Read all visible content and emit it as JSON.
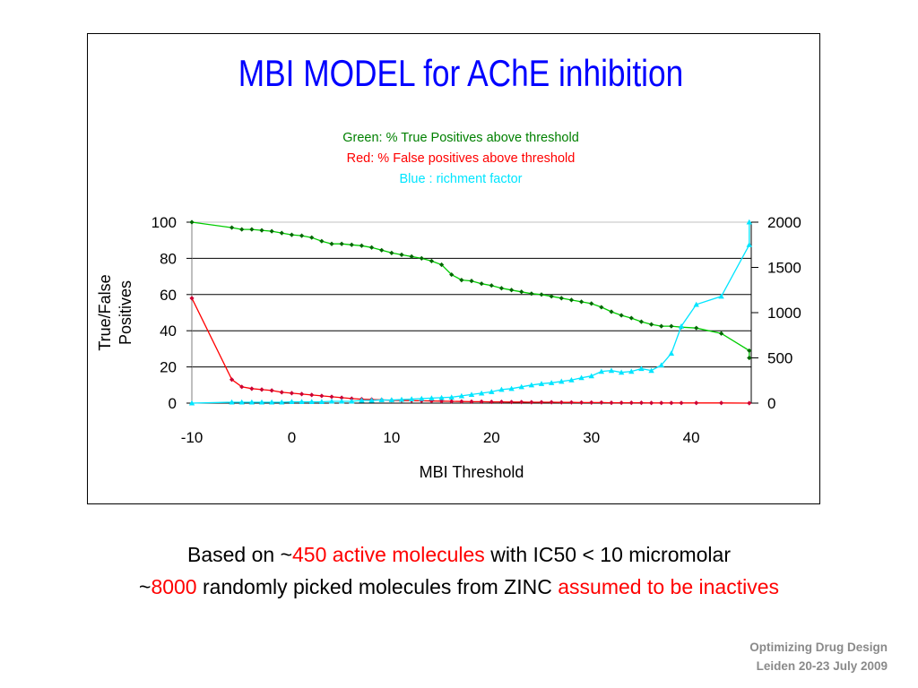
{
  "chart_data": {
    "type": "line",
    "title": "MBI MODEL for AChE inhibition",
    "subtitle_lines": [
      {
        "text": "Green: % True Positives above threshold",
        "color": "#008000"
      },
      {
        "text": "Red: % False positives above threshold",
        "color": "#ff0000"
      },
      {
        "text": "Blue : richment factor",
        "color": "#00e5ff"
      }
    ],
    "title_color": "#0000ff",
    "xlabel": "MBI Threshold",
    "ylabel_lines": [
      "True/False",
      "Positives"
    ],
    "xlim": [
      -10,
      46
    ],
    "ylim": [
      0,
      100
    ],
    "y2lim": [
      0,
      2000
    ],
    "x_ticks": [
      "-10",
      "0",
      "10",
      "20",
      "30",
      "40"
    ],
    "y_ticks": [
      "0",
      "20",
      "40",
      "60",
      "80",
      "100"
    ],
    "y2_ticks": [
      "0",
      "500",
      "1000",
      "1500",
      "2000"
    ],
    "grid": true,
    "series": [
      {
        "axis": "left",
        "color": "#00cc00",
        "marker": "diamond",
        "points": [
          [
            -10,
            100
          ],
          [
            -6,
            97
          ],
          [
            -5,
            96
          ],
          [
            -4,
            96
          ],
          [
            -3,
            95.5
          ],
          [
            -2,
            95
          ],
          [
            -1,
            94
          ],
          [
            0,
            93
          ],
          [
            1,
            92.5
          ],
          [
            2,
            91.5
          ],
          [
            3,
            89.5
          ],
          [
            4,
            88
          ],
          [
            5,
            88
          ],
          [
            6,
            87.5
          ],
          [
            7,
            87
          ],
          [
            8,
            86
          ],
          [
            9,
            84.5
          ],
          [
            10,
            83
          ],
          [
            11,
            82
          ],
          [
            12,
            81
          ],
          [
            13,
            80
          ],
          [
            14,
            78.5
          ],
          [
            15,
            76.5
          ],
          [
            16,
            71
          ],
          [
            17,
            68
          ],
          [
            18,
            67.5
          ],
          [
            19,
            66
          ],
          [
            20,
            65
          ],
          [
            21,
            63.5
          ],
          [
            22,
            62.5
          ],
          [
            23,
            61.5
          ],
          [
            24,
            60.5
          ],
          [
            25,
            60
          ],
          [
            26,
            59
          ],
          [
            27,
            58
          ],
          [
            28,
            57
          ],
          [
            29,
            56
          ],
          [
            30,
            55
          ],
          [
            31,
            53
          ],
          [
            32,
            50.5
          ],
          [
            33,
            48.5
          ],
          [
            34,
            47
          ],
          [
            35,
            45
          ],
          [
            36,
            43.5
          ],
          [
            37,
            42.5
          ],
          [
            38,
            42.5
          ],
          [
            39,
            42
          ],
          [
            40.5,
            41.5
          ],
          [
            43,
            38.5
          ],
          [
            45.8,
            29
          ],
          [
            45.8,
            25
          ]
        ]
      },
      {
        "axis": "left",
        "color": "#ff0000",
        "marker": "diamond",
        "points": [
          [
            -10,
            58
          ],
          [
            -6,
            13
          ],
          [
            -5,
            9
          ],
          [
            -4,
            8
          ],
          [
            -3,
            7.5
          ],
          [
            -2,
            7
          ],
          [
            -1,
            6
          ],
          [
            0,
            5.5
          ],
          [
            1,
            5
          ],
          [
            2,
            4.5
          ],
          [
            3,
            4
          ],
          [
            4,
            3.5
          ],
          [
            5,
            3
          ],
          [
            6,
            2.5
          ],
          [
            7,
            2.2
          ],
          [
            8,
            2
          ],
          [
            9,
            1.8
          ],
          [
            10,
            1.6
          ],
          [
            11,
            1.5
          ],
          [
            12,
            1.4
          ],
          [
            13,
            1.3
          ],
          [
            14,
            1.2
          ],
          [
            15,
            1.1
          ],
          [
            16,
            1
          ],
          [
            17,
            0.9
          ],
          [
            18,
            0.8
          ],
          [
            19,
            0.8
          ],
          [
            20,
            0.7
          ],
          [
            21,
            0.7
          ],
          [
            22,
            0.6
          ],
          [
            23,
            0.6
          ],
          [
            24,
            0.5
          ],
          [
            25,
            0.5
          ],
          [
            26,
            0.5
          ],
          [
            27,
            0.4
          ],
          [
            28,
            0.4
          ],
          [
            29,
            0.3
          ],
          [
            30,
            0.3
          ],
          [
            31,
            0.3
          ],
          [
            32,
            0.2
          ],
          [
            33,
            0.2
          ],
          [
            34,
            0.2
          ],
          [
            35,
            0.2
          ],
          [
            36,
            0.1
          ],
          [
            37,
            0.1
          ],
          [
            38,
            0.1
          ],
          [
            39,
            0.1
          ],
          [
            40.5,
            0.1
          ],
          [
            43,
            0.1
          ],
          [
            45.8,
            0
          ]
        ]
      },
      {
        "axis": "right",
        "color": "#00e5ff",
        "marker": "triangle",
        "points": [
          [
            -10,
            0
          ],
          [
            -6,
            10
          ],
          [
            -5,
            10
          ],
          [
            -4,
            10
          ],
          [
            -3,
            10
          ],
          [
            -2,
            10
          ],
          [
            -1,
            10
          ],
          [
            0,
            15
          ],
          [
            1,
            15
          ],
          [
            2,
            15
          ],
          [
            3,
            15
          ],
          [
            4,
            20
          ],
          [
            5,
            20
          ],
          [
            6,
            20
          ],
          [
            7,
            30
          ],
          [
            8,
            30
          ],
          [
            9,
            35
          ],
          [
            10,
            35
          ],
          [
            11,
            40
          ],
          [
            12,
            45
          ],
          [
            13,
            50
          ],
          [
            14,
            55
          ],
          [
            15,
            60
          ],
          [
            16,
            65
          ],
          [
            17,
            80
          ],
          [
            18,
            95
          ],
          [
            19,
            110
          ],
          [
            20,
            125
          ],
          [
            21,
            150
          ],
          [
            22,
            160
          ],
          [
            23,
            180
          ],
          [
            24,
            200
          ],
          [
            25,
            215
          ],
          [
            26,
            225
          ],
          [
            27,
            240
          ],
          [
            28,
            255
          ],
          [
            29,
            280
          ],
          [
            30,
            300
          ],
          [
            31,
            350
          ],
          [
            32,
            360
          ],
          [
            33,
            340
          ],
          [
            34,
            350
          ],
          [
            35,
            380
          ],
          [
            36,
            360
          ],
          [
            37,
            420
          ],
          [
            38,
            550
          ],
          [
            39,
            850
          ],
          [
            40.5,
            1090
          ],
          [
            43,
            1180
          ],
          [
            45.8,
            1750
          ],
          [
            45.8,
            2000
          ]
        ]
      }
    ]
  },
  "caption": {
    "line1_a": "Based on ~",
    "line1_b": "450 active molecules",
    "line1_c": " with IC50 < 10 micromolar",
    "line2_a": "~",
    "line2_b": "8000",
    "line2_c": " randomly picked molecules from ZINC ",
    "line2_d": "assumed to be inactives"
  },
  "footer": {
    "line1": "Optimizing Drug Design",
    "line2": "Leiden 20-23 July 2009"
  }
}
